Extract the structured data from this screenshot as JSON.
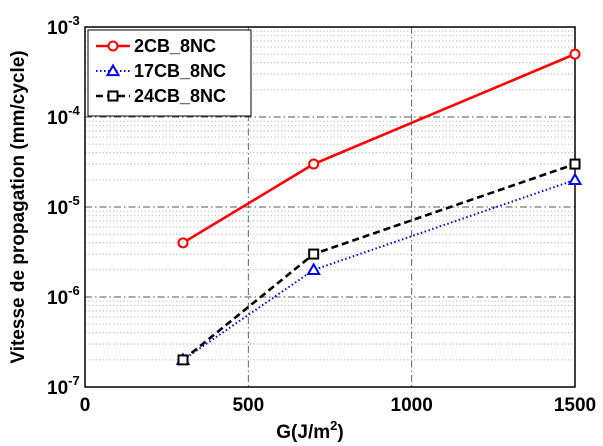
{
  "chart_data": {
    "type": "line",
    "xlabel": "G(J/m",
    "xlabel_sup": "2",
    "xlabel_end": ")",
    "ylabel": "Vitesse de propagation (mm/cycle)",
    "xlim": [
      0,
      1500
    ],
    "ylim": [
      1e-07,
      0.001
    ],
    "y_scale": "log",
    "x_ticks": [
      0,
      500,
      1000,
      1500
    ],
    "x_tick_labels": [
      "0",
      "500",
      "1000",
      "1500"
    ],
    "y_ticks": [
      1e-07,
      1e-06,
      1e-05,
      0.0001,
      0.001
    ],
    "y_tick_base": "10",
    "y_tick_exponents": [
      "-7",
      "-6",
      "-5",
      "-4",
      "-3"
    ],
    "grid": true,
    "legend_position": "top-left",
    "series": [
      {
        "name": "2CB_8NC",
        "color": "#ff0000",
        "marker": "circle",
        "line": "solid",
        "x": [
          300,
          700,
          1500
        ],
        "y": [
          4e-06,
          3e-05,
          0.0005
        ]
      },
      {
        "name": "17CB_8NC",
        "color": "#0000ff",
        "marker": "triangle",
        "line": "dotted",
        "x": [
          300,
          700,
          1500
        ],
        "y": [
          2e-07,
          2e-06,
          2e-05
        ]
      },
      {
        "name": "24CB_8NC",
        "color": "#000000",
        "marker": "square",
        "line": "dashed",
        "x": [
          300,
          700,
          1500
        ],
        "y": [
          2e-07,
          3e-06,
          3e-05
        ]
      }
    ]
  }
}
